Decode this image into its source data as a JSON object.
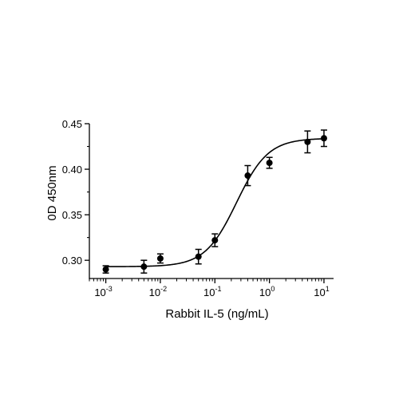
{
  "chart_data": {
    "type": "scatter",
    "title": "",
    "xlabel": "Rabbit IL-5 (ng/mL)",
    "ylabel": "0D 450nm",
    "xscale": "log",
    "xlim": [
      0.0005,
      15
    ],
    "ylim": [
      0.28,
      0.45
    ],
    "grid": false,
    "legend": "none",
    "x_ticks": [
      {
        "value": 0.001,
        "base": "10",
        "exp": "-3"
      },
      {
        "value": 0.01,
        "base": "10",
        "exp": "-2"
      },
      {
        "value": 0.1,
        "base": "10",
        "exp": "-1"
      },
      {
        "value": 1,
        "base": "10",
        "exp": "0"
      },
      {
        "value": 10,
        "base": "10",
        "exp": "1"
      }
    ],
    "y_ticks": [
      {
        "value": 0.3,
        "label": "0.30"
      },
      {
        "value": 0.35,
        "label": "0.35"
      },
      {
        "value": 0.4,
        "label": "0.40"
      },
      {
        "value": 0.45,
        "label": "0.45"
      }
    ],
    "series": [
      {
        "points": [
          {
            "x": 0.001,
            "y": 0.29,
            "err": 0.004
          },
          {
            "x": 0.005,
            "y": 0.293,
            "err": 0.007
          },
          {
            "x": 0.01,
            "y": 0.302,
            "err": 0.005
          },
          {
            "x": 0.05,
            "y": 0.304,
            "err": 0.008
          },
          {
            "x": 0.1,
            "y": 0.322,
            "err": 0.007
          },
          {
            "x": 0.4,
            "y": 0.393,
            "err": 0.011
          },
          {
            "x": 1,
            "y": 0.407,
            "err": 0.006
          },
          {
            "x": 5,
            "y": 0.43,
            "err": 0.012
          },
          {
            "x": 10,
            "y": 0.434,
            "err": 0.009
          }
        ],
        "fit": {
          "model": "4PL",
          "bottom": 0.293,
          "top": 0.434,
          "ec50": 0.25,
          "hill": 1.5
        }
      }
    ],
    "colors": {
      "marker": "#000000",
      "line": "#000000"
    }
  }
}
